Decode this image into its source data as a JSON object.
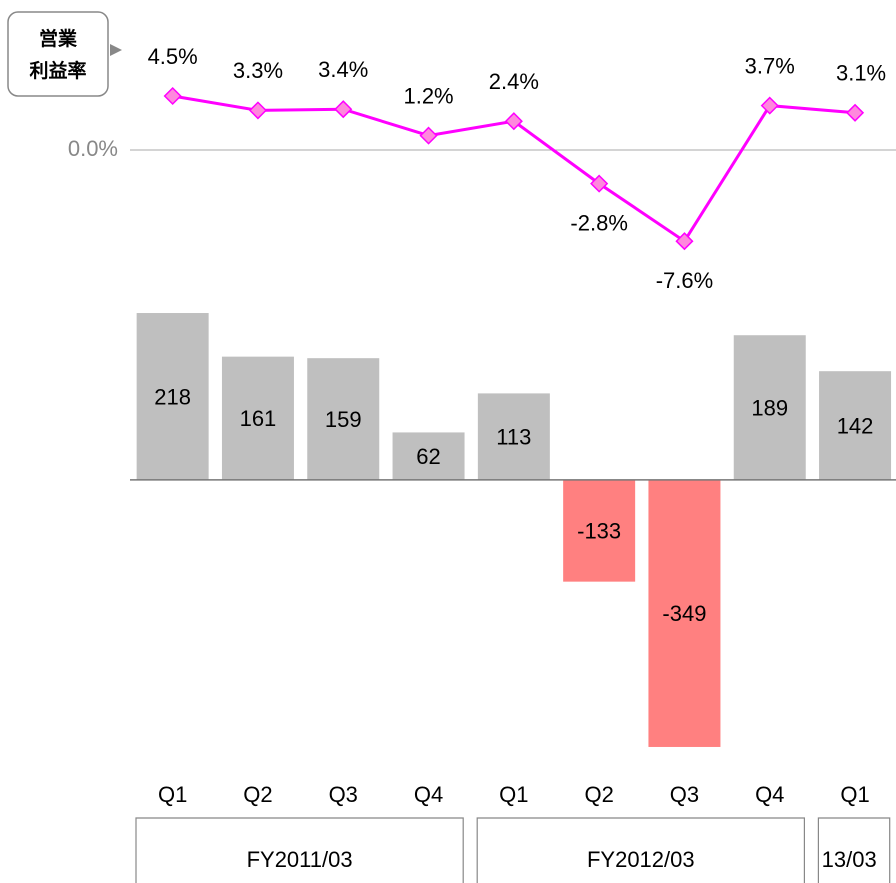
{
  "chart_data": {
    "type": "bar_line",
    "line_axis_label": [
      "営業",
      "利益率"
    ],
    "categories": [
      "Q1",
      "Q2",
      "Q3",
      "Q4",
      "Q1",
      "Q2",
      "Q3",
      "Q4",
      "Q1"
    ],
    "groups": [
      {
        "label": "FY2011/03",
        "span": [
          0,
          4
        ]
      },
      {
        "label": "FY2012/03",
        "span": [
          4,
          8
        ]
      },
      {
        "label": "13/03",
        "span": [
          8,
          9
        ]
      }
    ],
    "bars": {
      "values": [
        218,
        161,
        159,
        62,
        113,
        -133,
        -349,
        189,
        142
      ],
      "color": "#bfbfbf",
      "negative_color": "#ff8080"
    },
    "line": {
      "values": [
        4.5,
        3.3,
        3.4,
        1.2,
        2.4,
        -2.8,
        -7.6,
        3.7,
        3.1
      ],
      "value_labels": [
        "4.5%",
        "3.3%",
        "3.4%",
        "1.2%",
        "2.4%",
        "-2.8%",
        "-7.6%",
        "3.7%",
        "3.1%"
      ],
      "axis": "y2",
      "color": "#ff00ff",
      "marker_color": "#ff88dd"
    },
    "ylim": [
      -400,
      350
    ],
    "y2lim": [
      -10,
      10
    ],
    "y2ticks": [
      {
        "value": 0,
        "label": "0.0%"
      }
    ]
  }
}
